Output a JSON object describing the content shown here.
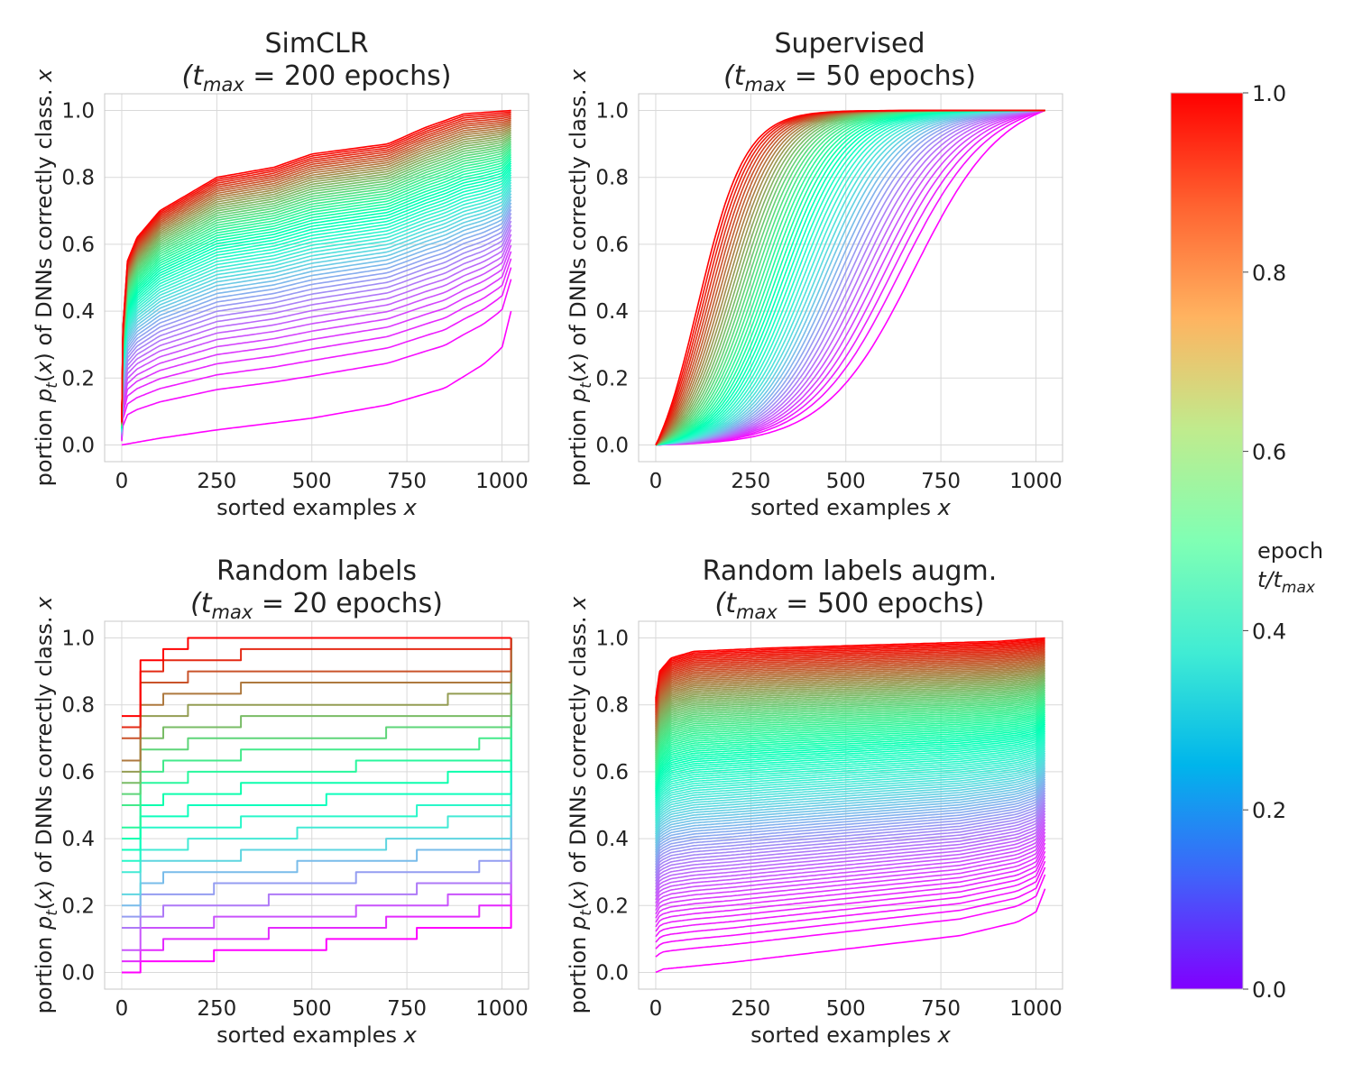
{
  "colors": {
    "grid": "#d9d9d9",
    "frame": "#c8c8c8",
    "background": "#ffffff",
    "colormap": "rainbow"
  },
  "colorbar": {
    "label_line1": "epoch",
    "label_line2_base": "t/t",
    "label_line2_sub": "max",
    "ticks": [
      "0.0",
      "0.2",
      "0.4",
      "0.6",
      "0.8",
      "1.0"
    ],
    "range": [
      0,
      1
    ]
  },
  "chart_data": [
    {
      "type": "line",
      "title_line1": "SimCLR",
      "title_line2": {
        "open": "(t",
        "sub": "max",
        "rest": " = 200 epochs)"
      },
      "xlabel": {
        "text": "sorted examples ",
        "var": "x"
      },
      "ylabel": {
        "pre": "portion ",
        "p": "p",
        "sub": "t",
        "mid": "(",
        "x1": "x",
        "post": ") of DNNs correctly class. ",
        "x2": "x"
      },
      "xlim": [
        -45,
        1070
      ],
      "ylim": [
        -0.05,
        1.05
      ],
      "xticks": [
        "0",
        "250",
        "500",
        "750",
        "1000"
      ],
      "yticks": [
        "0.0",
        "0.2",
        "0.4",
        "0.6",
        "0.8",
        "1.0"
      ],
      "step": false,
      "series_count": 60,
      "first_curve": {
        "name": "epoch 1",
        "points": [
          [
            0,
            0
          ],
          [
            100,
            0.02
          ],
          [
            250,
            0.045
          ],
          [
            500,
            0.08
          ],
          [
            700,
            0.12
          ],
          [
            850,
            0.17
          ],
          [
            950,
            0.24
          ],
          [
            1000,
            0.29
          ],
          [
            1024,
            0.4
          ]
        ]
      },
      "last_curve": {
        "name": "epoch 200",
        "points": [
          [
            0,
            0.07
          ],
          [
            3,
            0.35
          ],
          [
            15,
            0.55
          ],
          [
            40,
            0.62
          ],
          [
            100,
            0.7
          ],
          [
            250,
            0.8
          ],
          [
            400,
            0.83
          ],
          [
            500,
            0.87
          ],
          [
            700,
            0.9
          ],
          [
            800,
            0.95
          ],
          [
            900,
            0.99
          ],
          [
            1024,
            1.0
          ]
        ]
      }
    },
    {
      "type": "line",
      "title_line1": "Supervised",
      "title_line2": {
        "open": "(t",
        "sub": "max",
        "rest": " = 50 epochs)"
      },
      "xlabel": {
        "text": "sorted examples ",
        "var": "x"
      },
      "ylabel": {
        "pre": "portion ",
        "p": "p",
        "sub": "t",
        "mid": "(",
        "x1": "x",
        "post": ") of DNNs correctly class. ",
        "x2": "x"
      },
      "xlim": [
        -45,
        1070
      ],
      "ylim": [
        -0.05,
        1.05
      ],
      "xticks": [
        "0",
        "250",
        "500",
        "750",
        "1000"
      ],
      "yticks": [
        "0.0",
        "0.2",
        "0.4",
        "0.6",
        "0.8",
        "1.0"
      ],
      "step": false,
      "series_count": 50,
      "first_curve": {
        "name": "epoch 1",
        "midpoint_x": 680,
        "steepness": 0.0085
      },
      "last_curve": {
        "name": "epoch 50",
        "midpoint_x": 110,
        "steepness": 0.016
      }
    },
    {
      "type": "line",
      "title_line1": "Random labels",
      "title_line2": {
        "open": "(t",
        "sub": "max",
        "rest": " = 20 epochs)"
      },
      "xlabel": {
        "text": "sorted examples ",
        "var": "x"
      },
      "ylabel": {
        "pre": "portion ",
        "p": "p",
        "sub": "t",
        "mid": "(",
        "x1": "x",
        "post": ") of DNNs correctly class. ",
        "x2": "x"
      },
      "xlim": [
        -45,
        1070
      ],
      "ylim": [
        -0.05,
        1.05
      ],
      "xticks": [
        "0",
        "250",
        "500",
        "750",
        "1000"
      ],
      "yticks": [
        "0.0",
        "0.2",
        "0.4",
        "0.6",
        "0.8",
        "1.0"
      ],
      "step": true,
      "series_count": 20,
      "first_curve": {
        "name": "epoch 1",
        "points": [
          [
            0,
            0
          ],
          [
            50,
            0.03
          ],
          [
            300,
            0.06
          ],
          [
            650,
            0.1
          ],
          [
            1000,
            0.15
          ],
          [
            1024,
            0.25
          ]
        ]
      },
      "last_curve": {
        "name": "epoch 20",
        "points": [
          [
            0,
            0.77
          ],
          [
            2,
            0.9
          ],
          [
            30,
            0.93
          ],
          [
            70,
            0.97
          ],
          [
            300,
            1.0
          ],
          [
            1024,
            1.0
          ]
        ]
      }
    },
    {
      "type": "line",
      "title_line1": "Random labels augm.",
      "title_line2": {
        "open": "(t",
        "sub": "max",
        "rest": " = 500 epochs)"
      },
      "xlabel": {
        "text": "sorted examples ",
        "var": "x"
      },
      "ylabel": {
        "pre": "portion ",
        "p": "p",
        "sub": "t",
        "mid": "(",
        "x1": "x",
        "post": ") of DNNs correctly class. ",
        "x2": "x"
      },
      "xlim": [
        -45,
        1070
      ],
      "ylim": [
        -0.05,
        1.05
      ],
      "xticks": [
        "0",
        "250",
        "500",
        "750",
        "1000"
      ],
      "yticks": [
        "0.0",
        "0.2",
        "0.4",
        "0.6",
        "0.8",
        "1.0"
      ],
      "step": false,
      "series_count": 120,
      "first_curve": {
        "name": "epoch 1",
        "points": [
          [
            0,
            0.0
          ],
          [
            20,
            0.01
          ],
          [
            200,
            0.03
          ],
          [
            500,
            0.07
          ],
          [
            800,
            0.11
          ],
          [
            950,
            0.15
          ],
          [
            1000,
            0.18
          ],
          [
            1024,
            0.25
          ]
        ]
      },
      "last_curve": {
        "name": "epoch 500",
        "points": [
          [
            0,
            0.82
          ],
          [
            10,
            0.9
          ],
          [
            40,
            0.94
          ],
          [
            100,
            0.96
          ],
          [
            300,
            0.97
          ],
          [
            600,
            0.98
          ],
          [
            900,
            0.99
          ],
          [
            1024,
            1.0
          ]
        ]
      }
    }
  ]
}
